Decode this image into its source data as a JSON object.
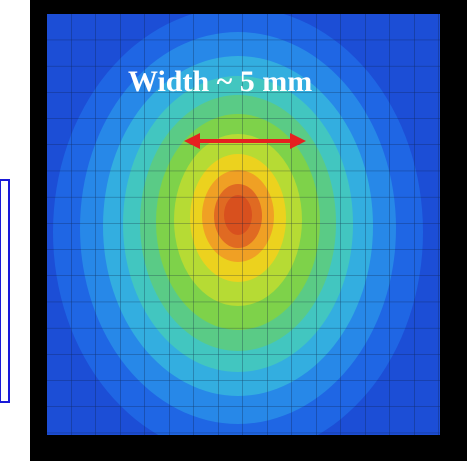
{
  "annotation": {
    "text": "Width ~ 5 mm"
  }
}
